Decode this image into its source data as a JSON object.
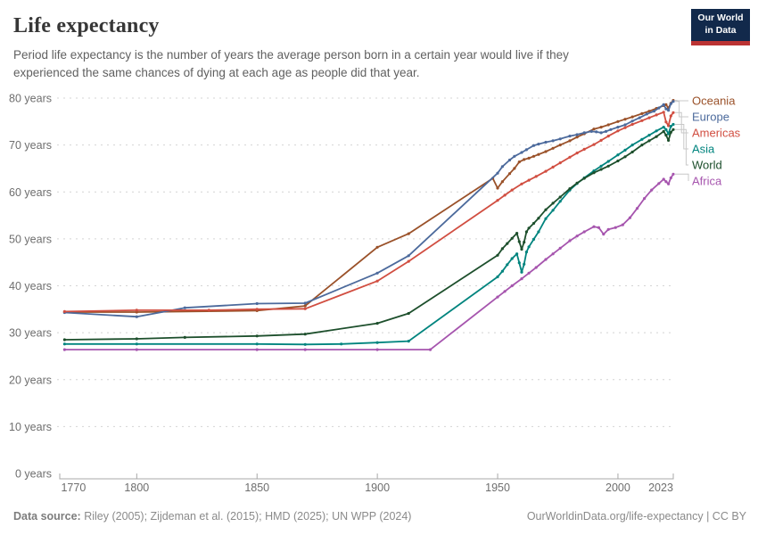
{
  "header": {
    "title": "Life expectancy",
    "subtitle": "Period life expectancy is the number of years the average person born in a certain year would live if they experienced the same chances of dying at each age as people did that year.",
    "logo": {
      "line1": "Our World",
      "line2": "in Data",
      "bg_color": "#12294b",
      "accent_color": "#bb3333"
    }
  },
  "footer": {
    "source_label": "Data source:",
    "source_text": " Riley (2005); Zijdeman et al. (2015); HMD (2025); UN WPP (2024)",
    "link_text": "OurWorldinData.org/life-expectancy | CC BY"
  },
  "chart_data": {
    "type": "line",
    "title": "Life expectancy",
    "xlabel": "",
    "ylabel": "",
    "xlim": [
      1768,
      2023
    ],
    "ylim": [
      0,
      80
    ],
    "x_ticks": [
      1770,
      1800,
      1850,
      1900,
      1950,
      2000,
      2023
    ],
    "y_ticks": [
      0,
      10,
      20,
      30,
      40,
      50,
      60,
      70,
      80
    ],
    "y_tick_suffix": " years",
    "grid": "horizontal-dashed",
    "legend_position": "right-of-line-ends",
    "colors": {
      "grid": "#d4d4d4",
      "axis": "#a8a8a8",
      "connector": "#c8c8c8"
    },
    "series": [
      {
        "name": "Oceania",
        "color": "#9a5129",
        "points": [
          [
            1770,
            34.4
          ],
          [
            1800,
            34.4
          ],
          [
            1850,
            34.7
          ],
          [
            1870,
            35.7
          ],
          [
            1900,
            48.2
          ],
          [
            1913,
            51.1
          ],
          [
            1948,
            62.9
          ],
          [
            1950,
            60.8
          ],
          [
            1952,
            62.2
          ],
          [
            1955,
            63.9
          ],
          [
            1957,
            65.0
          ],
          [
            1959,
            66.4
          ],
          [
            1961,
            66.9
          ],
          [
            1963,
            67.2
          ],
          [
            1965,
            67.6
          ],
          [
            1967,
            68.0
          ],
          [
            1970,
            68.6
          ],
          [
            1973,
            69.3
          ],
          [
            1976,
            70.0
          ],
          [
            1980,
            70.9
          ],
          [
            1983,
            71.7
          ],
          [
            1986,
            72.4
          ],
          [
            1990,
            73.4
          ],
          [
            1993,
            73.8
          ],
          [
            1996,
            74.3
          ],
          [
            2000,
            75.0
          ],
          [
            2003,
            75.5
          ],
          [
            2006,
            76.0
          ],
          [
            2010,
            76.7
          ],
          [
            2013,
            77.2
          ],
          [
            2016,
            77.8
          ],
          [
            2019,
            78.4
          ],
          [
            2020,
            78.6
          ],
          [
            2021,
            77.9
          ],
          [
            2022,
            78.9
          ],
          [
            2023,
            79.5
          ]
        ]
      },
      {
        "name": "Europe",
        "color": "#4c6a9c",
        "points": [
          [
            1770,
            34.3
          ],
          [
            1800,
            33.4
          ],
          [
            1820,
            35.3
          ],
          [
            1850,
            36.2
          ],
          [
            1870,
            36.3
          ],
          [
            1900,
            42.7
          ],
          [
            1913,
            46.4
          ],
          [
            1950,
            64.0
          ],
          [
            1952,
            65.4
          ],
          [
            1955,
            66.8
          ],
          [
            1957,
            67.6
          ],
          [
            1960,
            68.4
          ],
          [
            1962,
            69.0
          ],
          [
            1965,
            69.9
          ],
          [
            1967,
            70.2
          ],
          [
            1970,
            70.6
          ],
          [
            1973,
            70.9
          ],
          [
            1976,
            71.3
          ],
          [
            1980,
            71.9
          ],
          [
            1983,
            72.2
          ],
          [
            1986,
            72.6
          ],
          [
            1989,
            72.9
          ],
          [
            1991,
            72.8
          ],
          [
            1993,
            72.6
          ],
          [
            1995,
            72.9
          ],
          [
            1997,
            73.3
          ],
          [
            2000,
            73.8
          ],
          [
            2003,
            74.3
          ],
          [
            2006,
            75.1
          ],
          [
            2009,
            75.8
          ],
          [
            2012,
            76.6
          ],
          [
            2015,
            77.2
          ],
          [
            2017,
            77.9
          ],
          [
            2019,
            78.6
          ],
          [
            2020,
            77.7
          ],
          [
            2021,
            77.4
          ],
          [
            2022,
            78.8
          ],
          [
            2023,
            79.3
          ]
        ]
      },
      {
        "name": "Americas",
        "color": "#d14e41",
        "points": [
          [
            1770,
            34.5
          ],
          [
            1800,
            34.8
          ],
          [
            1830,
            34.8
          ],
          [
            1850,
            35.0
          ],
          [
            1870,
            35.1
          ],
          [
            1900,
            41.0
          ],
          [
            1913,
            45.2
          ],
          [
            1950,
            58.2
          ],
          [
            1953,
            59.3
          ],
          [
            1956,
            60.4
          ],
          [
            1960,
            61.7
          ],
          [
            1963,
            62.5
          ],
          [
            1966,
            63.3
          ],
          [
            1970,
            64.4
          ],
          [
            1973,
            65.3
          ],
          [
            1976,
            66.2
          ],
          [
            1980,
            67.4
          ],
          [
            1983,
            68.3
          ],
          [
            1986,
            69.1
          ],
          [
            1990,
            70.1
          ],
          [
            1993,
            71.0
          ],
          [
            1996,
            71.9
          ],
          [
            2000,
            73.0
          ],
          [
            2003,
            73.7
          ],
          [
            2006,
            74.4
          ],
          [
            2010,
            75.2
          ],
          [
            2013,
            75.8
          ],
          [
            2016,
            76.4
          ],
          [
            2019,
            77.0
          ],
          [
            2020,
            74.9
          ],
          [
            2021,
            74.1
          ],
          [
            2022,
            76.2
          ],
          [
            2023,
            76.9
          ]
        ]
      },
      {
        "name": "Asia",
        "color": "#00847e",
        "points": [
          [
            1770,
            27.6
          ],
          [
            1800,
            27.6
          ],
          [
            1850,
            27.6
          ],
          [
            1870,
            27.5
          ],
          [
            1885,
            27.6
          ],
          [
            1900,
            27.9
          ],
          [
            1913,
            28.2
          ],
          [
            1950,
            41.9
          ],
          [
            1952,
            43.1
          ],
          [
            1954,
            44.5
          ],
          [
            1956,
            45.8
          ],
          [
            1958,
            46.8
          ],
          [
            1959,
            44.9
          ],
          [
            1960,
            42.9
          ],
          [
            1961,
            44.6
          ],
          [
            1962,
            47.2
          ],
          [
            1963,
            48.3
          ],
          [
            1965,
            49.9
          ],
          [
            1967,
            51.5
          ],
          [
            1970,
            54.3
          ],
          [
            1973,
            56.1
          ],
          [
            1976,
            58.0
          ],
          [
            1980,
            60.4
          ],
          [
            1983,
            61.8
          ],
          [
            1986,
            63.0
          ],
          [
            1990,
            64.5
          ],
          [
            1993,
            65.5
          ],
          [
            1996,
            66.5
          ],
          [
            2000,
            67.9
          ],
          [
            2003,
            68.9
          ],
          [
            2006,
            70.0
          ],
          [
            2010,
            71.2
          ],
          [
            2013,
            72.1
          ],
          [
            2016,
            73.0
          ],
          [
            2019,
            73.8
          ],
          [
            2020,
            73.3
          ],
          [
            2021,
            72.4
          ],
          [
            2022,
            74.0
          ],
          [
            2023,
            74.4
          ]
        ]
      },
      {
        "name": "World",
        "color": "#1d4f2c",
        "points": [
          [
            1770,
            28.5
          ],
          [
            1800,
            28.7
          ],
          [
            1820,
            29.0
          ],
          [
            1850,
            29.3
          ],
          [
            1870,
            29.7
          ],
          [
            1900,
            32.0
          ],
          [
            1913,
            34.1
          ],
          [
            1950,
            46.5
          ],
          [
            1952,
            47.9
          ],
          [
            1954,
            49.0
          ],
          [
            1956,
            50.1
          ],
          [
            1958,
            51.2
          ],
          [
            1959,
            49.4
          ],
          [
            1960,
            47.8
          ],
          [
            1961,
            49.3
          ],
          [
            1962,
            51.5
          ],
          [
            1963,
            52.3
          ],
          [
            1965,
            53.3
          ],
          [
            1967,
            54.4
          ],
          [
            1970,
            56.2
          ],
          [
            1973,
            57.6
          ],
          [
            1976,
            58.9
          ],
          [
            1980,
            60.7
          ],
          [
            1983,
            61.9
          ],
          [
            1986,
            62.9
          ],
          [
            1990,
            64.1
          ],
          [
            1993,
            64.8
          ],
          [
            1996,
            65.5
          ],
          [
            2000,
            66.6
          ],
          [
            2003,
            67.5
          ],
          [
            2006,
            68.5
          ],
          [
            2010,
            70.0
          ],
          [
            2013,
            70.9
          ],
          [
            2016,
            71.8
          ],
          [
            2019,
            72.9
          ],
          [
            2020,
            72.1
          ],
          [
            2021,
            71.0
          ],
          [
            2022,
            72.7
          ],
          [
            2023,
            73.3
          ]
        ]
      },
      {
        "name": "Africa",
        "color": "#a655ae",
        "points": [
          [
            1770,
            26.4
          ],
          [
            1800,
            26.4
          ],
          [
            1850,
            26.4
          ],
          [
            1870,
            26.4
          ],
          [
            1900,
            26.4
          ],
          [
            1922,
            26.4
          ],
          [
            1950,
            37.6
          ],
          [
            1953,
            38.8
          ],
          [
            1956,
            40.0
          ],
          [
            1960,
            41.5
          ],
          [
            1963,
            42.7
          ],
          [
            1966,
            43.9
          ],
          [
            1970,
            45.6
          ],
          [
            1973,
            46.8
          ],
          [
            1976,
            48.0
          ],
          [
            1980,
            49.6
          ],
          [
            1983,
            50.6
          ],
          [
            1986,
            51.5
          ],
          [
            1990,
            52.6
          ],
          [
            1992,
            52.4
          ],
          [
            1994,
            51.0
          ],
          [
            1996,
            52.0
          ],
          [
            1999,
            52.4
          ],
          [
            2002,
            53.0
          ],
          [
            2005,
            54.5
          ],
          [
            2008,
            56.5
          ],
          [
            2011,
            58.6
          ],
          [
            2014,
            60.4
          ],
          [
            2017,
            61.8
          ],
          [
            2019,
            62.7
          ],
          [
            2020,
            62.2
          ],
          [
            2021,
            61.7
          ],
          [
            2022,
            63.0
          ],
          [
            2023,
            63.8
          ]
        ]
      }
    ]
  }
}
